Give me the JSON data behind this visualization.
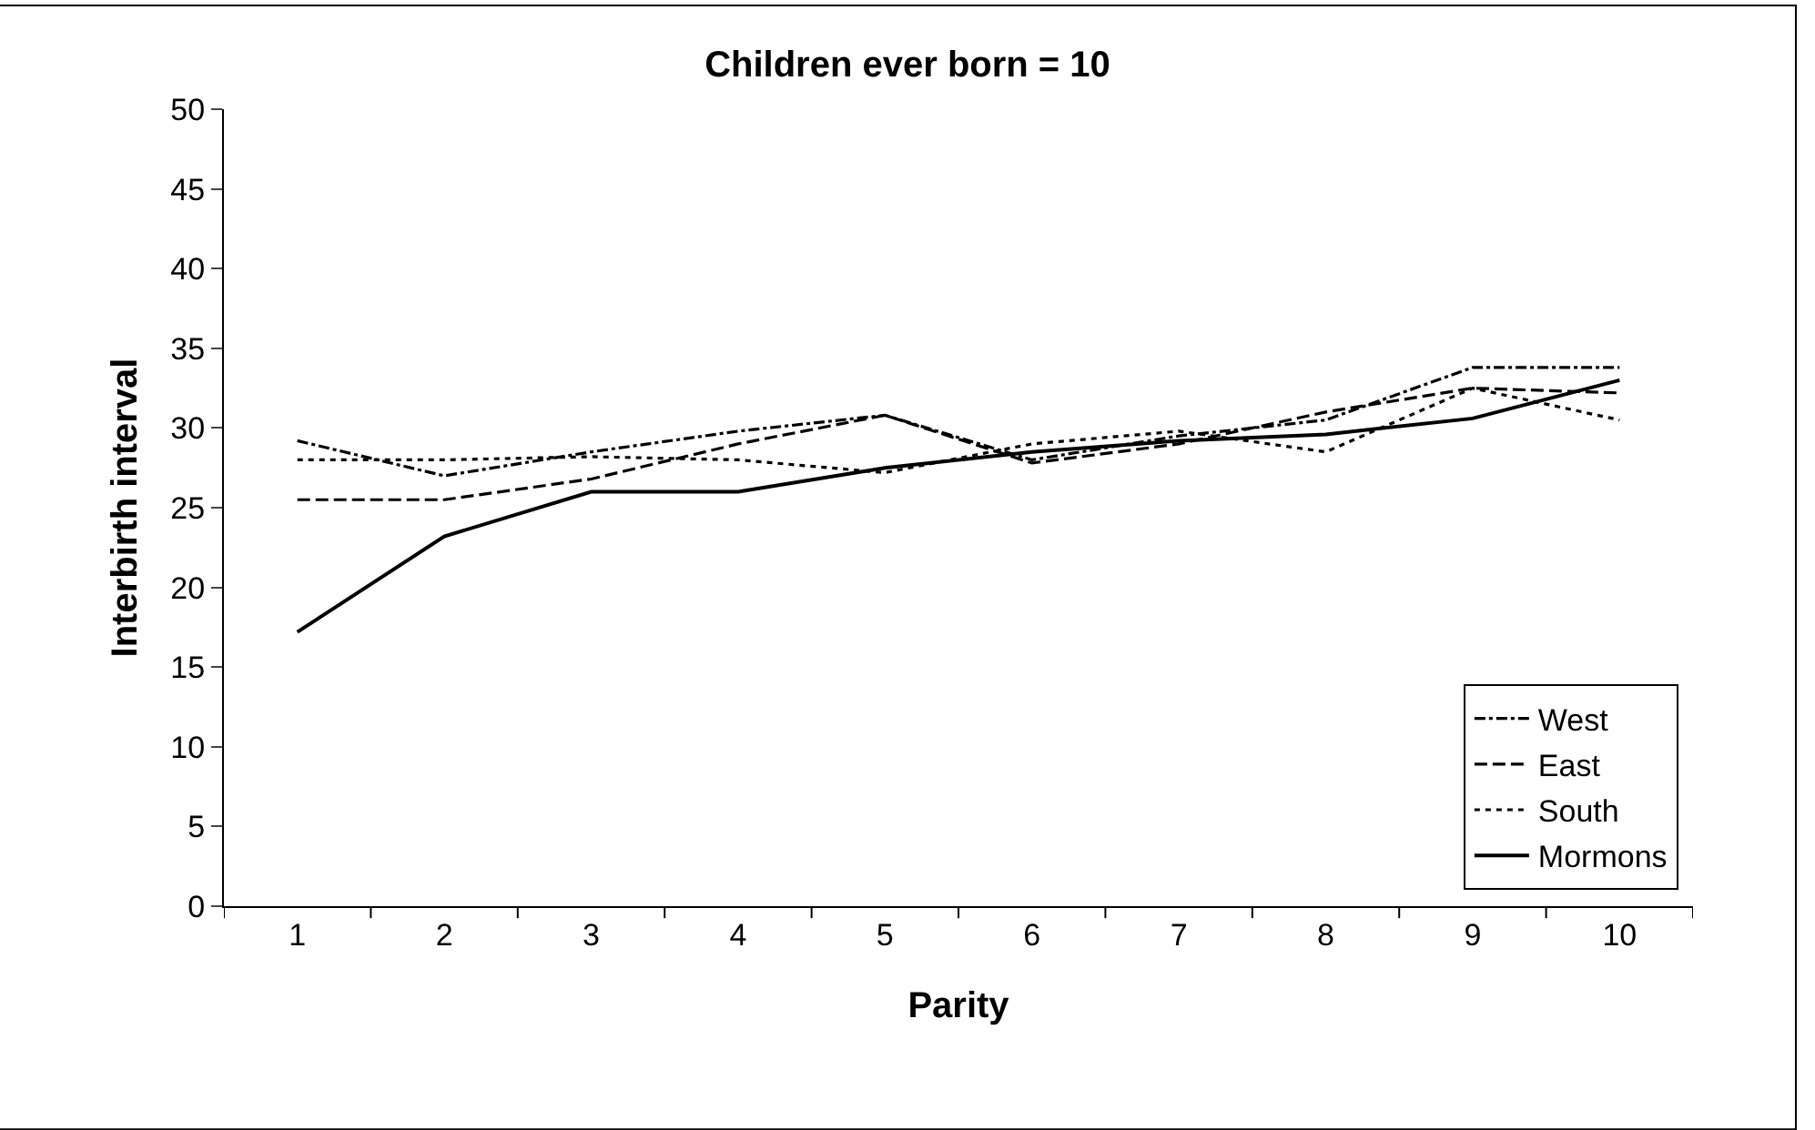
{
  "chart_data": {
    "type": "line",
    "title": "Children ever born = 10",
    "xlabel": "Parity",
    "ylabel": "Interbirth interval",
    "categories": [
      "1",
      "2",
      "3",
      "4",
      "5",
      "6",
      "7",
      "8",
      "9",
      "10"
    ],
    "ylim": [
      0,
      50
    ],
    "yticks": [
      0,
      5,
      10,
      15,
      20,
      25,
      30,
      35,
      40,
      45,
      50
    ],
    "legend": "bottom right",
    "marker": "none",
    "series": [
      {
        "name": "West",
        "color": "#000000",
        "line_style": "dashdot",
        "values": [
          29.2,
          27,
          28.5,
          29.8,
          30.8,
          28,
          29.5,
          30.5,
          33.8,
          33.8
        ]
      },
      {
        "name": "East",
        "color": "#000000",
        "line_style": "dashed",
        "values": [
          25.5,
          25.5,
          26.8,
          29,
          30.8,
          27.8,
          29,
          31,
          32.5,
          32.2
        ]
      },
      {
        "name": "South",
        "color": "#000000",
        "line_style": "dotted",
        "values": [
          28,
          28,
          28.2,
          28,
          27.2,
          29,
          29.8,
          28.5,
          32.5,
          30.5
        ]
      },
      {
        "name": "Mormons",
        "color": "#000000",
        "line_style": "solid",
        "values": [
          17.2,
          23.2,
          26,
          26,
          27.5,
          28.5,
          29.2,
          29.6,
          30.6,
          33
        ]
      }
    ]
  }
}
